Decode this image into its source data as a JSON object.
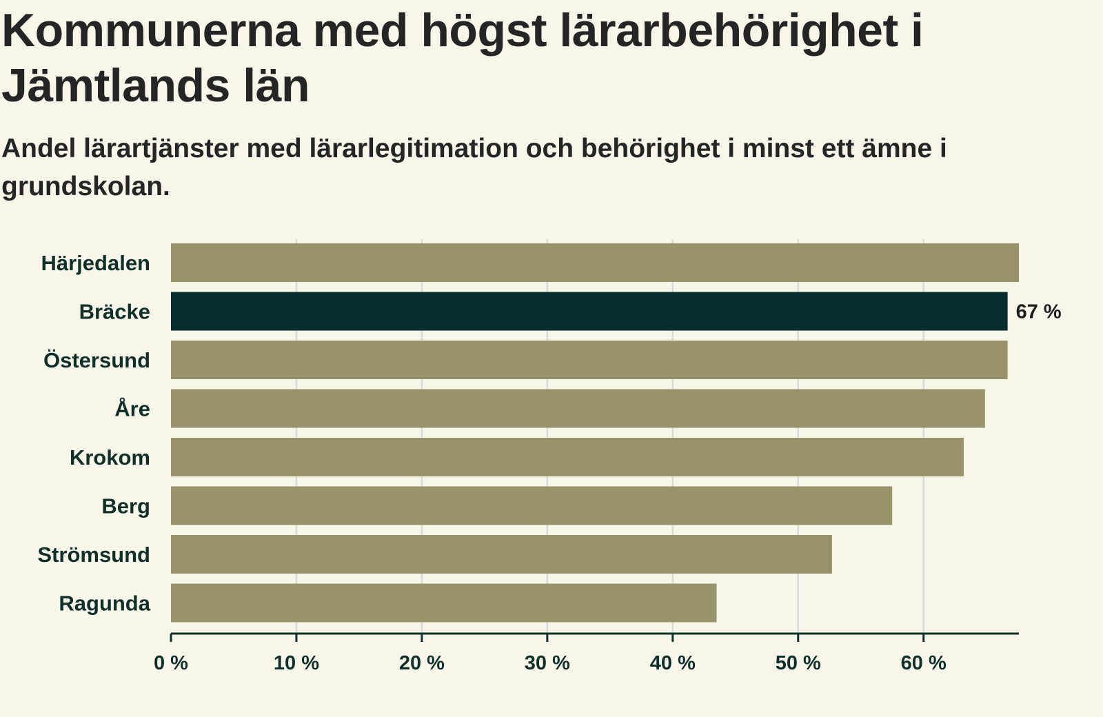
{
  "colors": {
    "background": "#f8f6e9",
    "bar": "#99936b",
    "highlight": "#072d2c",
    "grid": "#dcdad6",
    "axis": "#0f2f2a",
    "label": "#0f2f2a"
  },
  "chart_data": {
    "type": "bar",
    "orientation": "horizontal",
    "title": "Kommunerna med högst lärarbehörighet i Jämtlands län",
    "subtitle": "Andel lärartjänster med lärarlegitimation och behörighet i minst ett ämne i grundskolan.",
    "categories": [
      "Härjedalen",
      "Bräcke",
      "Östersund",
      "Åre",
      "Krokom",
      "Berg",
      "Strömsund",
      "Ragunda"
    ],
    "values": [
      67.6,
      66.7,
      66.7,
      64.9,
      63.2,
      57.5,
      52.7,
      43.5
    ],
    "highlight_category": "Bräcke",
    "highlight_label": "67 %",
    "xlim": [
      0,
      67.6
    ],
    "ticks": [
      0,
      10,
      20,
      30,
      40,
      50,
      60
    ],
    "tick_labels": [
      "0 %",
      "10 %",
      "20 %",
      "30 %",
      "40 %",
      "50 %",
      "60 %"
    ],
    "xlabel": "",
    "ylabel": "",
    "grid": true
  }
}
